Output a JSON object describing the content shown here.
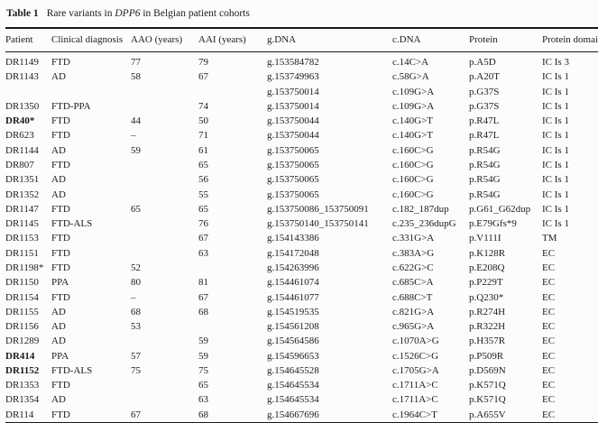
{
  "table": {
    "label": "Table 1",
    "caption_prefix": "Rare variants in ",
    "gene": "DPP6",
    "caption_suffix": " in Belgian patient cohorts",
    "columns": [
      "Patient",
      "Clinical diagnosis",
      "AAO (years)",
      "AAI (years)",
      "g.DNA",
      "c.DNA",
      "Protein",
      "Protein domain"
    ],
    "rows": [
      {
        "patient": "DR1149",
        "bold": false,
        "diagnosis": "FTD",
        "aao": "77",
        "aai": "79",
        "gdna": "g.153584782",
        "cdna": "c.14C>A",
        "protein": "p.A5D",
        "domain": "IC Is 3"
      },
      {
        "patient": "DR1143",
        "bold": false,
        "diagnosis": "AD",
        "aao": "58",
        "aai": "67",
        "gdna": "g.153749963",
        "cdna": "c.58G>A",
        "protein": "p.A20T",
        "domain": "IC Is 1"
      },
      {
        "patient": "",
        "bold": false,
        "diagnosis": "",
        "aao": "",
        "aai": "",
        "gdna": "g.153750014",
        "cdna": "c.109G>A",
        "protein": "p.G37S",
        "domain": "IC Is 1"
      },
      {
        "patient": "DR1350",
        "bold": false,
        "diagnosis": "FTD-PPA",
        "aao": "",
        "aai": "74",
        "gdna": "g.153750014",
        "cdna": "c.109G>A",
        "protein": "p.G37S",
        "domain": "IC Is 1"
      },
      {
        "patient": "DR40*",
        "bold": true,
        "diagnosis": "FTD",
        "aao": "44",
        "aai": "50",
        "gdna": "g.153750044",
        "cdna": "c.140G>T",
        "protein": "p.R47L",
        "domain": "IC Is 1"
      },
      {
        "patient": "DR623",
        "bold": false,
        "diagnosis": "FTD",
        "aao": "–",
        "aai": "71",
        "gdna": "g.153750044",
        "cdna": "c.140G>T",
        "protein": "p.R47L",
        "domain": "IC Is 1"
      },
      {
        "patient": "DR1144",
        "bold": false,
        "diagnosis": "AD",
        "aao": "59",
        "aai": "61",
        "gdna": "g.153750065",
        "cdna": "c.160C>G",
        "protein": "p.R54G",
        "domain": "IC Is 1"
      },
      {
        "patient": "DR807",
        "bold": false,
        "diagnosis": "FTD",
        "aao": "",
        "aai": "65",
        "gdna": "g.153750065",
        "cdna": "c.160C>G",
        "protein": "p.R54G",
        "domain": "IC Is 1"
      },
      {
        "patient": "DR1351",
        "bold": false,
        "diagnosis": "AD",
        "aao": "",
        "aai": "56",
        "gdna": "g.153750065",
        "cdna": "c.160C>G",
        "protein": "p.R54G",
        "domain": "IC Is 1"
      },
      {
        "patient": "DR1352",
        "bold": false,
        "diagnosis": "AD",
        "aao": "",
        "aai": "55",
        "gdna": "g.153750065",
        "cdna": "c.160C>G",
        "protein": "p.R54G",
        "domain": "IC Is 1"
      },
      {
        "patient": "DR1147",
        "bold": false,
        "diagnosis": "FTD",
        "aao": "65",
        "aai": "65",
        "gdna": "g.153750086_153750091",
        "cdna": "c.182_187dup",
        "protein": "p.G61_G62dup",
        "domain": "IC Is 1"
      },
      {
        "patient": "DR1145",
        "bold": false,
        "diagnosis": "FTD-ALS",
        "aao": "",
        "aai": "76",
        "gdna": "g.153750140_153750141",
        "cdna": "c.235_236dupG",
        "protein": "p.E79Gfs*9",
        "domain": "IC Is 1"
      },
      {
        "patient": "DR1153",
        "bold": false,
        "diagnosis": "FTD",
        "aao": "",
        "aai": "67",
        "gdna": "g.154143386",
        "cdna": "c.331G>A",
        "protein": "p.V111I",
        "domain": "TM"
      },
      {
        "patient": "DR1151",
        "bold": false,
        "diagnosis": "FTD",
        "aao": "",
        "aai": "63",
        "gdna": "g.154172048",
        "cdna": "c.383A>G",
        "protein": "p.K128R",
        "domain": "EC"
      },
      {
        "patient": "DR1198*",
        "bold": false,
        "diagnosis": "FTD",
        "aao": "52",
        "aai": "",
        "gdna": "g.154263996",
        "cdna": "c.622G>C",
        "protein": "p.E208Q",
        "domain": "EC"
      },
      {
        "patient": "DR1150",
        "bold": false,
        "diagnosis": "PPA",
        "aao": "80",
        "aai": "81",
        "gdna": "g.154461074",
        "cdna": "c.685C>A",
        "protein": "p.P229T",
        "domain": "EC"
      },
      {
        "patient": "DR1154",
        "bold": false,
        "diagnosis": "FTD",
        "aao": "–",
        "aai": "67",
        "gdna": "g.154461077",
        "cdna": "c.688C>T",
        "protein": "p.Q230*",
        "domain": "EC"
      },
      {
        "patient": "DR1155",
        "bold": false,
        "diagnosis": "AD",
        "aao": "68",
        "aai": "68",
        "gdna": "g.154519535",
        "cdna": "c.821G>A",
        "protein": "p.R274H",
        "domain": "EC"
      },
      {
        "patient": "DR1156",
        "bold": false,
        "diagnosis": "AD",
        "aao": "53",
        "aai": "",
        "gdna": "g.154561208",
        "cdna": "c.965G>A",
        "protein": "p.R322H",
        "domain": "EC"
      },
      {
        "patient": "DR1289",
        "bold": false,
        "diagnosis": "AD",
        "aao": "",
        "aai": "59",
        "gdna": "g.154564586",
        "cdna": "c.1070A>G",
        "protein": "p.H357R",
        "domain": "EC"
      },
      {
        "patient": "DR414",
        "bold": true,
        "diagnosis": "PPA",
        "aao": "57",
        "aai": "59",
        "gdna": "g.154596653",
        "cdna": "c.1526C>G",
        "protein": "p.P509R",
        "domain": "EC"
      },
      {
        "patient": "DR1152",
        "bold": true,
        "diagnosis": "FTD-ALS",
        "aao": "75",
        "aai": "75",
        "gdna": "g.154645528",
        "cdna": "c.1705G>A",
        "protein": "p.D569N",
        "domain": "EC"
      },
      {
        "patient": "DR1353",
        "bold": false,
        "diagnosis": "FTD",
        "aao": "",
        "aai": "65",
        "gdna": "g.154645534",
        "cdna": "c.1711A>C",
        "protein": "p.K571Q",
        "domain": "EC"
      },
      {
        "patient": "DR1354",
        "bold": false,
        "diagnosis": "AD",
        "aao": "",
        "aai": "63",
        "gdna": "g.154645534",
        "cdna": "c.1711A>C",
        "protein": "p.K571Q",
        "domain": "EC"
      },
      {
        "patient": "DR114",
        "bold": false,
        "diagnosis": "FTD",
        "aao": "67",
        "aai": "68",
        "gdna": "g.154667696",
        "cdna": "c.1964C>T",
        "protein": "p.A655V",
        "domain": "EC"
      }
    ]
  }
}
